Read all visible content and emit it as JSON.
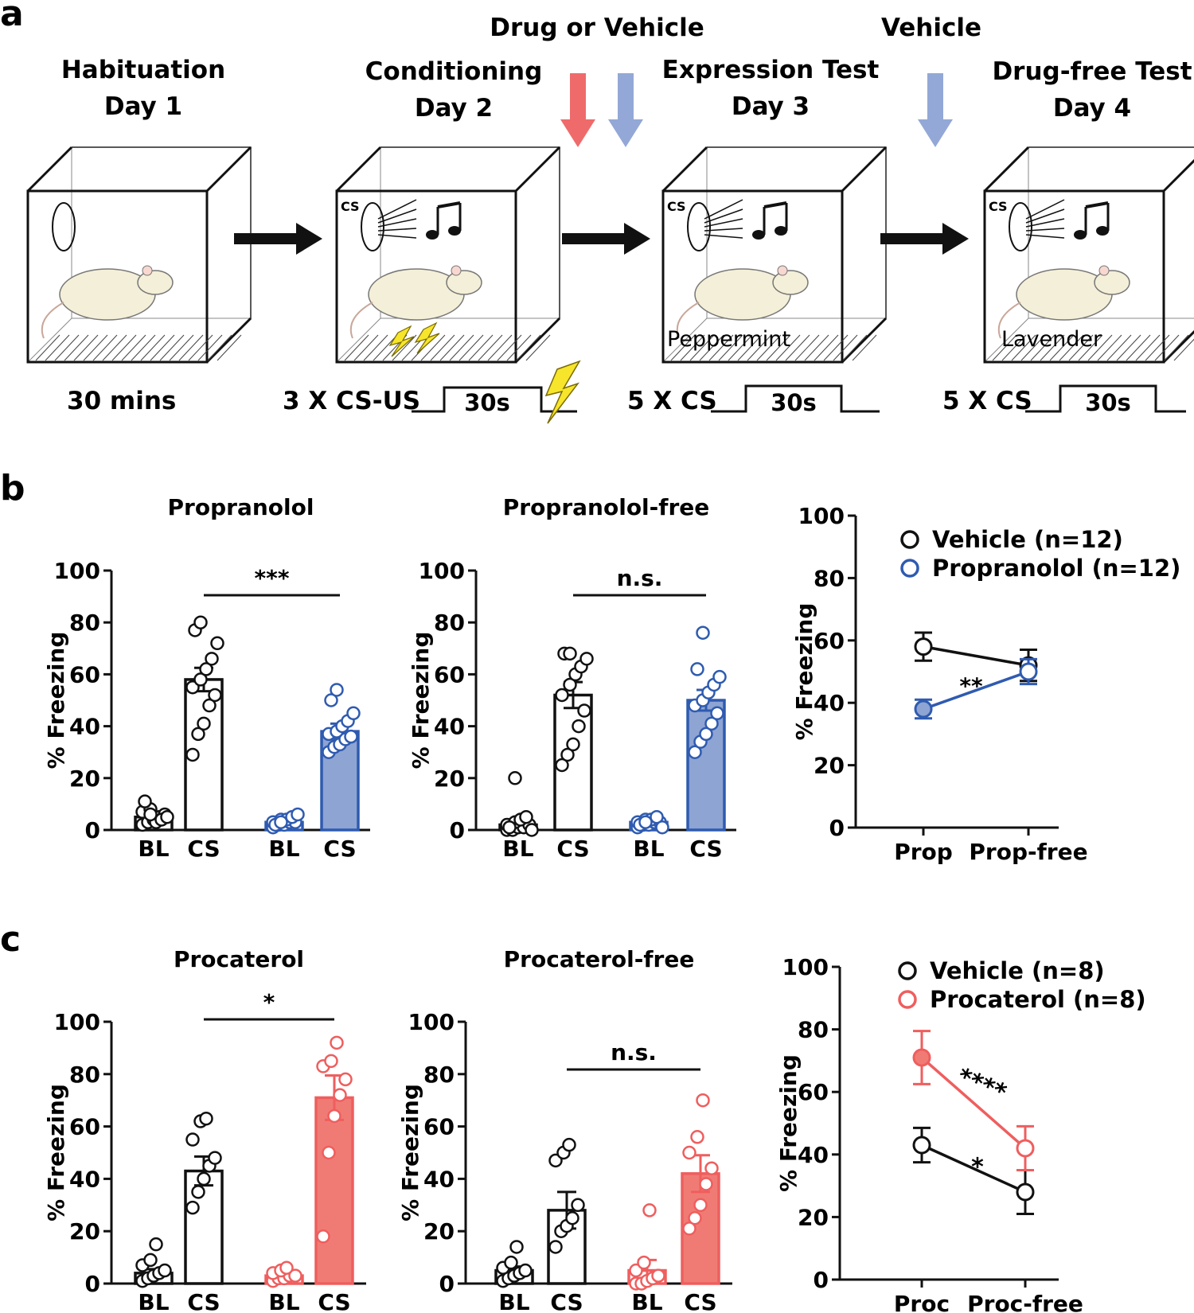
{
  "panel_a": {
    "label": "a",
    "stages": [
      {
        "title": "Habituation",
        "day": "Day 1",
        "note": "30 mins"
      },
      {
        "title": "Conditioning",
        "day": "Day 2",
        "note": "3 X CS-US",
        "pulse": "30s"
      },
      {
        "title": "Expression Test",
        "day": "Day 3",
        "note": "5 X CS",
        "pulse": "30s",
        "context": "Peppermint"
      },
      {
        "title": "Drug-free Test",
        "day": "Day 4",
        "note": "5 X CS",
        "pulse": "30s",
        "context": "Lavender"
      }
    ],
    "treatments": [
      {
        "label": "Drug or Vehicle",
        "arrow_colors": [
          "#ef6b6b",
          "#93a8d6"
        ]
      },
      {
        "label": "Vehicle",
        "arrow_colors": [
          "#93a8d6"
        ]
      }
    ],
    "cs_label": "CS"
  },
  "colors": {
    "black": "#111111",
    "blue": "#2f5bb0",
    "blue_fill": "#8ea4d2",
    "red": "#ef5e5e",
    "red_fill": "#f07b75"
  },
  "panel_b": {
    "label": "b"
  },
  "panel_c": {
    "label": "c"
  },
  "chart_data": [
    {
      "id": "b1",
      "type": "bar",
      "title": "Propranolol",
      "ylabel": "% Freezing",
      "ylim": [
        0,
        100
      ],
      "yticks": [
        0,
        20,
        40,
        60,
        80,
        100
      ],
      "categories": [
        "BL",
        "CS",
        "BL",
        "CS"
      ],
      "values": [
        5,
        58,
        3,
        38
      ],
      "sem": [
        1,
        4.5,
        0.6,
        3
      ],
      "groups": [
        "Vehicle",
        "Vehicle",
        "Propranolol",
        "Propranolol"
      ],
      "points": [
        [
          2,
          3,
          4,
          5,
          6,
          7,
          8,
          3,
          4,
          5,
          11,
          6
        ],
        [
          29,
          37,
          41,
          48,
          52,
          55,
          58,
          62,
          66,
          72,
          77,
          80
        ],
        [
          1,
          2,
          2,
          3,
          3,
          3,
          4,
          4,
          5,
          6,
          2,
          3
        ],
        [
          30,
          32,
          33,
          35,
          36,
          37,
          38,
          40,
          42,
          45,
          50,
          54
        ]
      ],
      "significance": {
        "label": "***",
        "between": [
          1,
          3
        ]
      }
    },
    {
      "id": "b2",
      "type": "bar",
      "title": "Propranolol-free",
      "ylabel": "% Freezing",
      "ylim": [
        0,
        100
      ],
      "yticks": [
        0,
        20,
        40,
        60,
        80,
        100
      ],
      "categories": [
        "BL",
        "CS",
        "BL",
        "CS"
      ],
      "values": [
        2,
        52,
        3,
        50
      ],
      "sem": [
        1.5,
        5,
        0.5,
        4
      ],
      "groups": [
        "Vehicle",
        "Vehicle",
        "Propranolol",
        "Propranolol"
      ],
      "points": [
        [
          0,
          0,
          1,
          1,
          2,
          2,
          3,
          4,
          5,
          0,
          1,
          20
        ],
        [
          25,
          29,
          33,
          40,
          46,
          52,
          56,
          60,
          63,
          66,
          68,
          68
        ],
        [
          1,
          2,
          2,
          3,
          3,
          3,
          4,
          4,
          5,
          1,
          2,
          3
        ],
        [
          30,
          34,
          37,
          41,
          45,
          48,
          50,
          53,
          56,
          59,
          62,
          76
        ]
      ],
      "significance": {
        "label": "n.s.",
        "between": [
          1,
          3
        ]
      }
    },
    {
      "id": "b3",
      "type": "line",
      "ylabel": "% Freezing",
      "ylim": [
        0,
        100
      ],
      "yticks": [
        0,
        20,
        40,
        60,
        80,
        100
      ],
      "x": [
        "Prop",
        "Prop-free"
      ],
      "series": [
        {
          "name": "Vehicle (n=12)",
          "values": [
            58,
            52
          ],
          "sem": [
            4.5,
            5
          ]
        },
        {
          "name": "Propranolol (n=12)",
          "values": [
            38,
            50
          ],
          "sem": [
            3,
            4
          ]
        }
      ],
      "annotation": "**"
    },
    {
      "id": "c1",
      "type": "bar",
      "title": "Procaterol",
      "ylabel": "% Freezing",
      "ylim": [
        0,
        100
      ],
      "yticks": [
        0,
        20,
        40,
        60,
        80,
        100
      ],
      "categories": [
        "BL",
        "CS",
        "BL",
        "CS"
      ],
      "values": [
        4,
        43,
        3,
        71
      ],
      "sem": [
        1.5,
        5.5,
        1,
        8.5
      ],
      "groups": [
        "Vehicle",
        "Vehicle",
        "Procaterol",
        "Procaterol"
      ],
      "points": [
        [
          1,
          2,
          3,
          4,
          5,
          7,
          9,
          15
        ],
        [
          29,
          35,
          40,
          45,
          48,
          55,
          62,
          63
        ],
        [
          1,
          2,
          2,
          3,
          3,
          4,
          5,
          6
        ],
        [
          18,
          50,
          64,
          72,
          78,
          83,
          85,
          92
        ]
      ],
      "significance": {
        "label": "*",
        "between": [
          1,
          3
        ]
      }
    },
    {
      "id": "c2",
      "type": "bar",
      "title": "Procaterol-free",
      "ylabel": "% Freezing",
      "ylim": [
        0,
        100
      ],
      "yticks": [
        0,
        20,
        40,
        60,
        80,
        100
      ],
      "categories": [
        "BL",
        "CS",
        "BL",
        "CS"
      ],
      "values": [
        5,
        28,
        5,
        42
      ],
      "sem": [
        1.5,
        7,
        4,
        7
      ],
      "groups": [
        "Vehicle",
        "Vehicle",
        "Procaterol",
        "Procaterol"
      ],
      "points": [
        [
          1,
          2,
          3,
          4,
          5,
          6,
          8,
          14
        ],
        [
          14,
          20,
          22,
          25,
          30,
          47,
          50,
          53
        ],
        [
          0,
          0,
          1,
          2,
          3,
          5,
          8,
          28
        ],
        [
          21,
          25,
          30,
          38,
          44,
          50,
          56,
          70
        ]
      ],
      "significance": {
        "label": "n.s.",
        "between": [
          1,
          3
        ]
      }
    },
    {
      "id": "c3",
      "type": "line",
      "ylabel": "% Freezing",
      "ylim": [
        0,
        100
      ],
      "yticks": [
        0,
        20,
        40,
        60,
        80,
        100
      ],
      "x": [
        "Proc",
        "Proc-free"
      ],
      "series": [
        {
          "name": "Vehicle (n=8)",
          "values": [
            43,
            28
          ],
          "sem": [
            5.5,
            7
          ]
        },
        {
          "name": "Procaterol (n=8)",
          "values": [
            71,
            42
          ],
          "sem": [
            8.5,
            7
          ]
        }
      ],
      "annotations": [
        "****",
        "*"
      ]
    }
  ]
}
